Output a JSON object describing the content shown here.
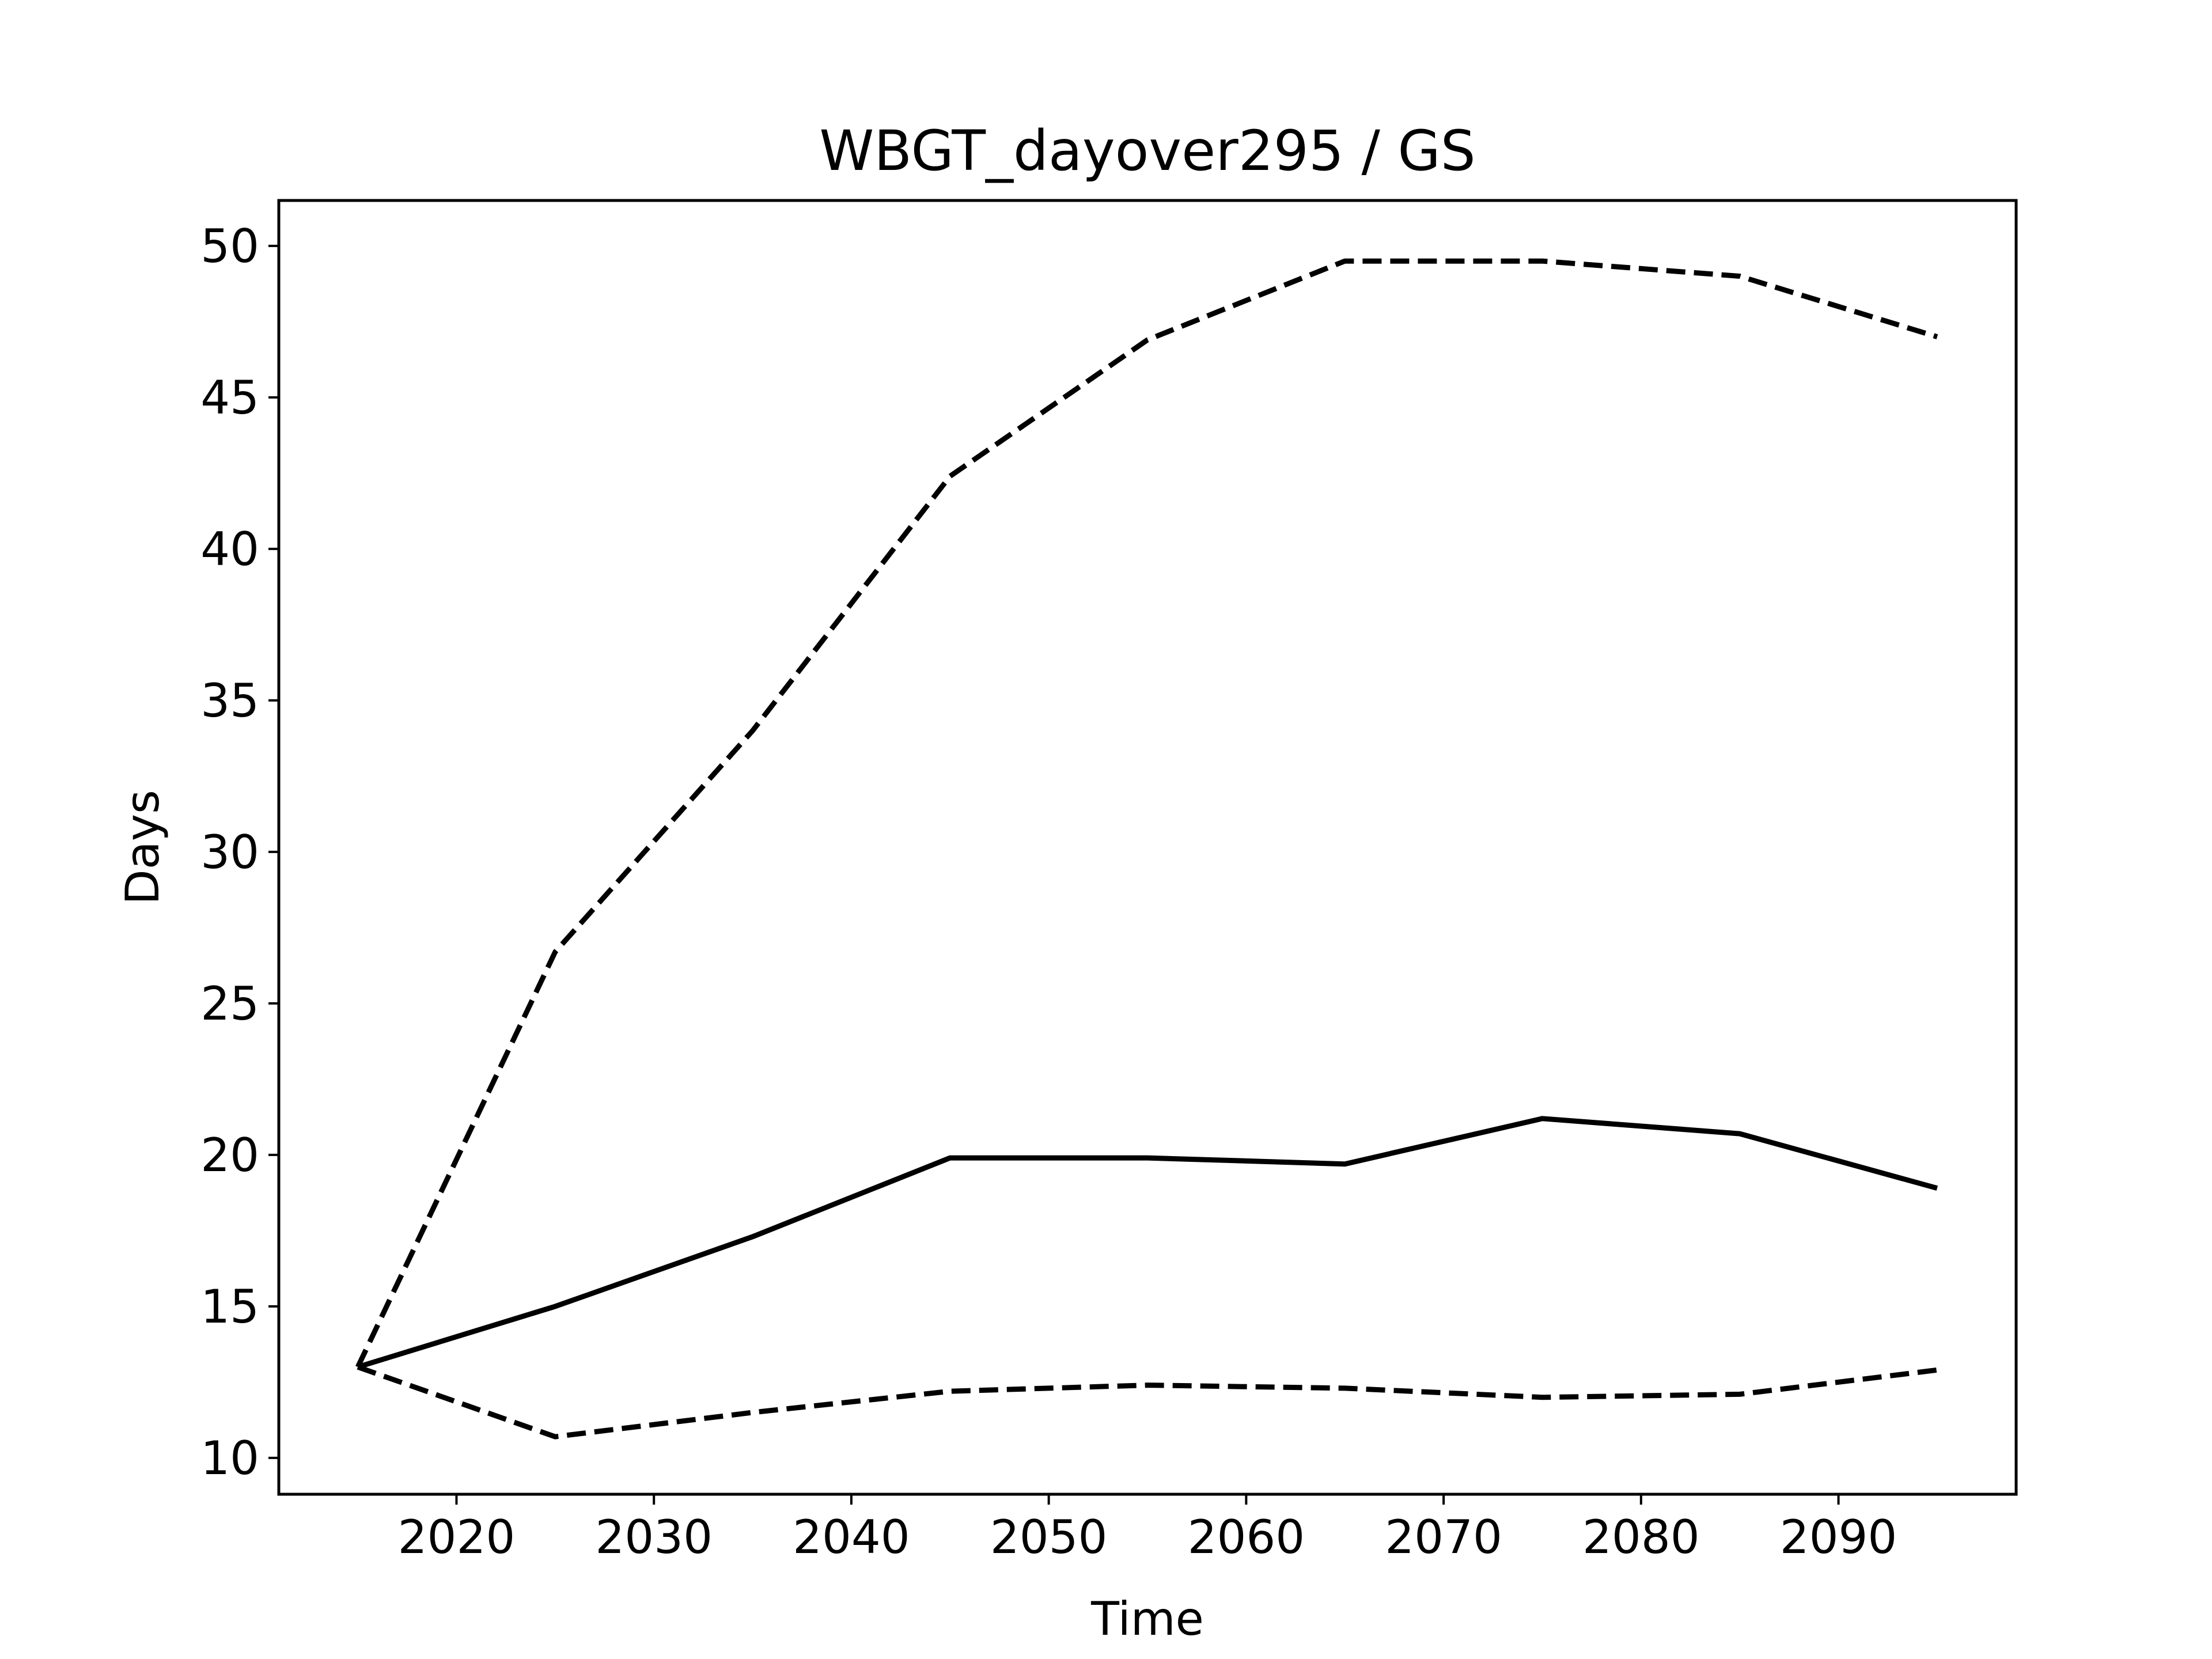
{
  "chart_data": {
    "type": "line",
    "title": "WBGT_dayover295 / GS",
    "xlabel": "Time",
    "ylabel": "Days",
    "xlim": [
      2011,
      2099
    ],
    "ylim": [
      8.8,
      51.5
    ],
    "xticks": [
      2020,
      2030,
      2040,
      2050,
      2060,
      2070,
      2080,
      2090
    ],
    "yticks": [
      10,
      15,
      20,
      25,
      30,
      35,
      40,
      45,
      50
    ],
    "grid": false,
    "legend": "none",
    "x": [
      2015,
      2025,
      2035,
      2045,
      2055,
      2065,
      2075,
      2085,
      2095
    ],
    "series": [
      {
        "style": "solid",
        "color": "#000000",
        "values": [
          13.0,
          15.0,
          17.3,
          19.9,
          19.9,
          19.7,
          21.2,
          20.7,
          18.9
        ]
      },
      {
        "style": "dashed",
        "color": "#000000",
        "values": [
          13.0,
          26.7,
          34.0,
          42.4,
          46.9,
          49.5,
          49.5,
          49.0,
          47.0
        ]
      },
      {
        "style": "dashed",
        "color": "#000000",
        "values": [
          13.0,
          10.7,
          11.5,
          12.2,
          12.4,
          12.3,
          12.0,
          12.1,
          12.9
        ]
      }
    ]
  }
}
